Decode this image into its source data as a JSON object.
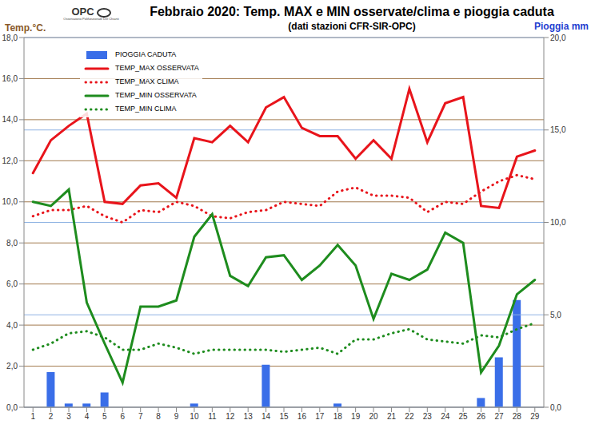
{
  "chart_data": {
    "type": "bar_line",
    "title": "Febbraio 2020: Temp. MAX e MIN osservate/clima e pioggia caduta",
    "subtitle": "(dati stazioni CFR-SIR-OPC)",
    "annotations": [
      "OPC",
      "Osservatorio Polifunzionale Del Chianti"
    ],
    "y_label": "Temp.°C.",
    "y2_label": "Pioggia mm",
    "categories": [
      "1",
      "2",
      "3",
      "4",
      "5",
      "6",
      "7",
      "8",
      "9",
      "10",
      "11",
      "12",
      "13",
      "14",
      "15",
      "16",
      "17",
      "18",
      "19",
      "20",
      "21",
      "22",
      "23",
      "24",
      "25",
      "26",
      "27",
      "28",
      "29"
    ],
    "series": [
      {
        "name": "PIOGGIA CADUTA",
        "type": "bar",
        "axis": "y2",
        "color": "#3a6ee8",
        "values": [
          0,
          1.9,
          0.2,
          0.2,
          0.8,
          0,
          0,
          0,
          0,
          0.2,
          0,
          0,
          0,
          2.3,
          0,
          0,
          0,
          0.2,
          0,
          0,
          0,
          0,
          0,
          0,
          0,
          0.5,
          2.7,
          5.8,
          0
        ]
      },
      {
        "name": "TEMP_MAX OSSERVATA",
        "type": "line",
        "line_style": "solid",
        "color": "#e8141b",
        "values": [
          11.4,
          13.0,
          13.7,
          14.3,
          10.0,
          9.9,
          10.8,
          10.9,
          10.2,
          13.1,
          12.9,
          13.7,
          12.9,
          14.6,
          15.1,
          13.6,
          13.2,
          13.2,
          12.1,
          13.0,
          12.1,
          15.5,
          12.9,
          14.8,
          15.1,
          9.8,
          9.7,
          12.2,
          12.5
        ]
      },
      {
        "name": "TEMP_MAX CLIMA",
        "type": "line",
        "line_style": "dotted",
        "color": "#e8141b",
        "values": [
          9.3,
          9.6,
          9.6,
          9.8,
          9.3,
          9.0,
          9.6,
          9.5,
          10.0,
          9.8,
          9.3,
          9.2,
          9.5,
          9.6,
          10.0,
          9.9,
          9.8,
          10.5,
          10.7,
          10.3,
          10.3,
          10.2,
          9.5,
          10.0,
          9.9,
          10.5,
          11.0,
          11.3,
          11.1
        ]
      },
      {
        "name": "TEMP_MIN OSSERVATA",
        "type": "line",
        "line_style": "solid",
        "color": "#1e8c1e",
        "values": [
          10.0,
          9.8,
          10.6,
          5.1,
          3.1,
          1.2,
          4.9,
          4.9,
          5.2,
          8.3,
          9.4,
          6.4,
          5.9,
          7.3,
          7.4,
          6.2,
          6.9,
          7.9,
          6.9,
          4.3,
          6.5,
          6.2,
          6.7,
          8.5,
          8.0,
          1.7,
          3.0,
          5.5,
          6.2
        ]
      },
      {
        "name": "TEMP_MIN CLIMA",
        "type": "line",
        "line_style": "dotted",
        "color": "#1e8c1e",
        "values": [
          2.8,
          3.1,
          3.6,
          3.7,
          3.4,
          2.8,
          2.8,
          3.1,
          2.9,
          2.6,
          2.8,
          2.8,
          2.8,
          2.8,
          2.7,
          2.8,
          2.9,
          2.6,
          3.3,
          3.3,
          3.6,
          3.8,
          3.3,
          3.2,
          3.1,
          3.5,
          3.4,
          3.8,
          4.1
        ]
      }
    ],
    "ylim": [
      0,
      18
    ],
    "yticks": [
      {
        "value": 0,
        "label": "0,0"
      },
      {
        "value": 2,
        "label": "2,0"
      },
      {
        "value": 4,
        "label": "4,0"
      },
      {
        "value": 6,
        "label": "6,0"
      },
      {
        "value": 8,
        "label": "8,0"
      },
      {
        "value": 10,
        "label": "10,0"
      },
      {
        "value": 12,
        "label": "12,0"
      },
      {
        "value": 14,
        "label": "14,0"
      },
      {
        "value": 16,
        "label": "16,0"
      },
      {
        "value": 18,
        "label": "18,0"
      }
    ],
    "y2lim": [
      0,
      20
    ],
    "y2ticks": [
      {
        "value": 0,
        "label": "0,0"
      },
      {
        "value": 5,
        "label": "5,0"
      },
      {
        "value": 10,
        "label": "10,0"
      },
      {
        "value": 15,
        "label": "15,0"
      },
      {
        "value": 20,
        "label": "20,0"
      }
    ],
    "grid": true,
    "legend": "upper left"
  }
}
